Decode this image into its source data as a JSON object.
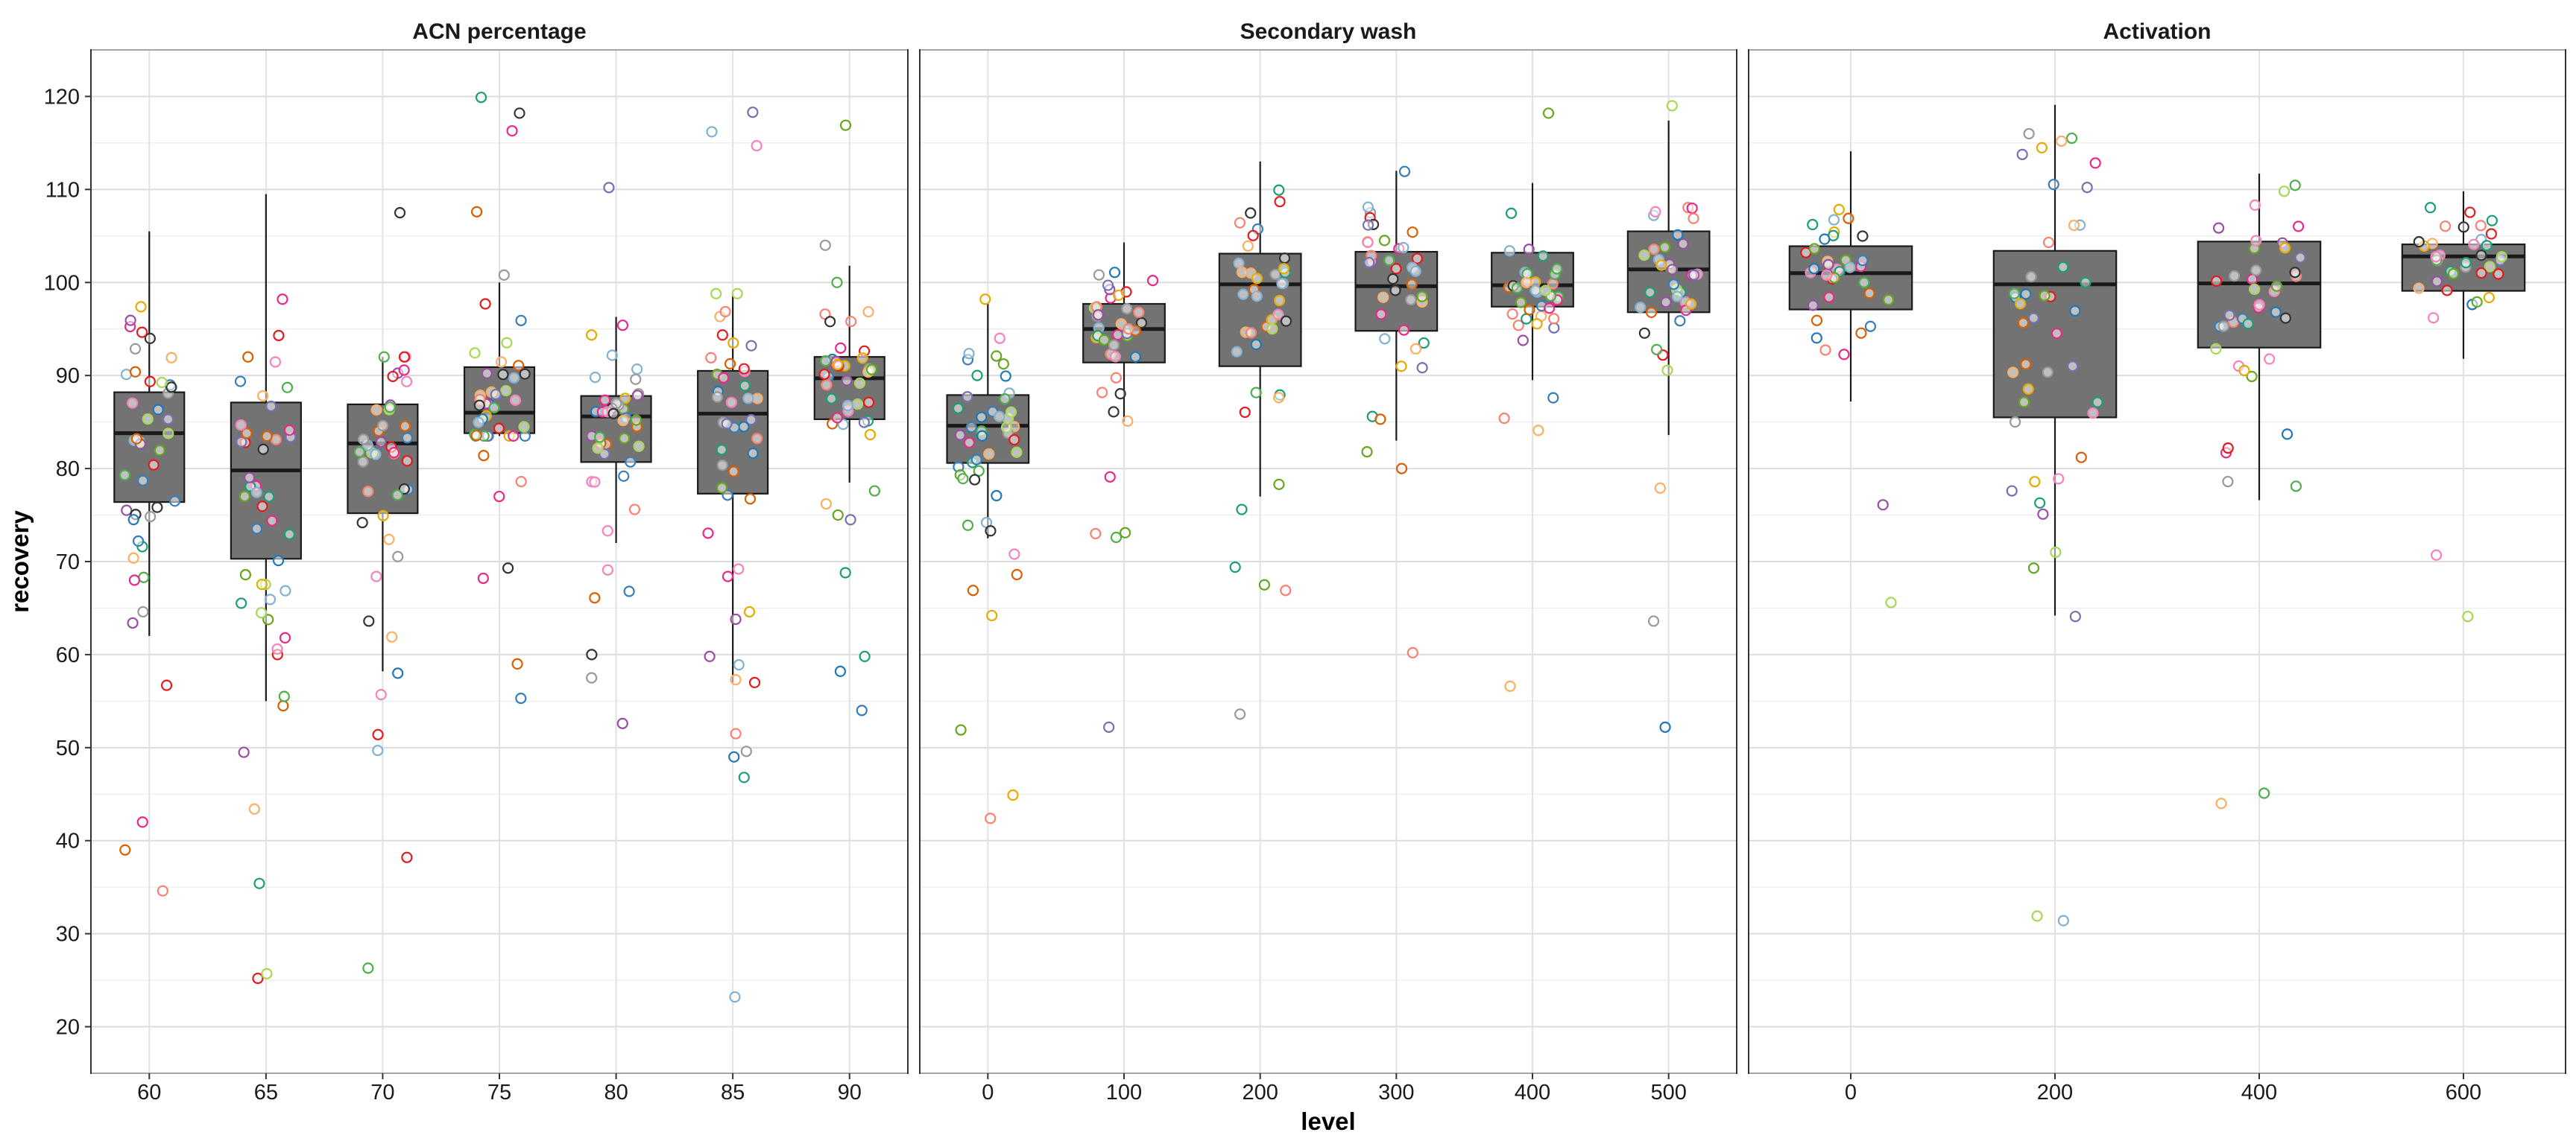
{
  "chart_data": {
    "type": "box",
    "xlabel": "level",
    "ylabel": "recovery",
    "ylim": [
      15,
      125
    ],
    "y_ticks": [
      "20",
      "30",
      "40",
      "50",
      "60",
      "70",
      "80",
      "90",
      "100",
      "110",
      "120"
    ],
    "grid": true,
    "box_fill": "#737373",
    "point_palette": [
      "#e7298a",
      "#1b9e77",
      "#d95f02",
      "#7570b3",
      "#66a61e",
      "#e6ab02",
      "#1f78b4",
      "#f781bf",
      "#fdae61",
      "#999999",
      "#e41a1c",
      "#377eb8",
      "#4daf4a",
      "#984ea3",
      "#a6d854",
      "#333333",
      "#80b1d3",
      "#fb8072"
    ],
    "panels": [
      {
        "title": "ACN percentage",
        "categories": [
          "60",
          "65",
          "70",
          "75",
          "80",
          "85",
          "90"
        ],
        "boxes": [
          {
            "q1": 76.4,
            "median": 83.8,
            "q3": 88.2,
            "whisker_low": 62,
            "whisker_high": 105.5
          },
          {
            "q1": 70.3,
            "median": 79.8,
            "q3": 87.1,
            "whisker_low": 55,
            "whisker_high": 109.5
          },
          {
            "q1": 75.2,
            "median": 82.7,
            "q3": 86.9,
            "whisker_low": 58.2,
            "whisker_high": 92
          },
          {
            "q1": 83.8,
            "median": 86.0,
            "q3": 90.9,
            "whisker_low": 83.5,
            "whisker_high": 100
          },
          {
            "q1": 80.7,
            "median": 85.6,
            "q3": 87.8,
            "whisker_low": 72,
            "whisker_high": 96.3
          },
          {
            "q1": 77.3,
            "median": 85.9,
            "q3": 90.5,
            "whisker_low": 57,
            "whisker_high": 98.8
          },
          {
            "q1": 85.3,
            "median": 89.7,
            "q3": 92.0,
            "whisker_low": 78.5,
            "whisker_high": 101.8
          }
        ],
        "outliers": [
          [
            42,
            39,
            34.6,
            56.7,
            68.3,
            71.6,
            72.2,
            68,
            63.4,
            64.6
          ],
          [
            25.2,
            25.7,
            35.4,
            43.4,
            49.5,
            54.5,
            55.5,
            60,
            60.6,
            64.5,
            98.2,
            94.3
          ],
          [
            26.3,
            38.2,
            49.7,
            51.4,
            55.7,
            58,
            61.9,
            63.6,
            68.4,
            107.5
          ],
          [
            55.3,
            59,
            68.2,
            69.3,
            77,
            78.6,
            81.4,
            107.6,
            116.3,
            118.2,
            119.9,
            100.8,
            97.7
          ],
          [
            52.6,
            57.5,
            60,
            66.1,
            66.8,
            69.1,
            73.3,
            75.6,
            110.2
          ],
          [
            23.2,
            46.8,
            49,
            49.6,
            51.5,
            57,
            57.3,
            58.9,
            59.8,
            63.8,
            64.6,
            69.2,
            114.7,
            116.2,
            118.3
          ],
          [
            54,
            58.2,
            59.8,
            68.8,
            74.5,
            75,
            76.2,
            77.6,
            100,
            116.9,
            104
          ]
        ]
      },
      {
        "title": "Secondary wash",
        "categories": [
          "0",
          "100",
          "200",
          "300",
          "400",
          "500"
        ],
        "boxes": [
          {
            "q1": 80.6,
            "median": 84.6,
            "q3": 87.9,
            "whisker_low": 72.5,
            "whisker_high": 97.8
          },
          {
            "q1": 91.4,
            "median": 95.0,
            "q3": 97.7,
            "whisker_low": 85,
            "whisker_high": 104.3
          },
          {
            "q1": 91.0,
            "median": 99.8,
            "q3": 103.1,
            "whisker_low": 77,
            "whisker_high": 113.0
          },
          {
            "q1": 94.8,
            "median": 99.6,
            "q3": 103.3,
            "whisker_low": 83,
            "whisker_high": 112
          },
          {
            "q1": 97.4,
            "median": 99.7,
            "q3": 103.2,
            "whisker_low": 89.5,
            "whisker_high": 110.7
          },
          {
            "q1": 96.8,
            "median": 101.4,
            "q3": 105.5,
            "whisker_low": 83.6,
            "whisker_high": 117.4
          }
        ],
        "outliers": [
          [
            44.9,
            42.4,
            51.9,
            64.2,
            66.9,
            68.6,
            70.8,
            73.3,
            73.9,
            78.8,
            98.2,
            94
          ],
          [
            52.2,
            72.6,
            73,
            73.1,
            79.1,
            85.1
          ],
          [
            53.6,
            66.9,
            67.5,
            69.4,
            75.6,
            78.3
          ],
          [
            60.2,
            80,
            81.8,
            85.6,
            85.3
          ],
          [
            56.6,
            84.1,
            85.4,
            87.6,
            118.2
          ],
          [
            52.2,
            63.6,
            77.9,
            119
          ]
        ]
      },
      {
        "title": "Activation",
        "categories": [
          "0",
          "200",
          "400",
          "600"
        ],
        "boxes": [
          {
            "q1": 97.1,
            "median": 101.0,
            "q3": 103.9,
            "whisker_low": 87.2,
            "whisker_high": 114.1
          },
          {
            "q1": 85.5,
            "median": 99.8,
            "q3": 103.4,
            "whisker_low": 64.2,
            "whisker_high": 119.1
          },
          {
            "q1": 93.0,
            "median": 99.9,
            "q3": 104.4,
            "whisker_low": 76.6,
            "whisker_high": 111.7
          },
          {
            "q1": 99.1,
            "median": 102.8,
            "q3": 104.1,
            "whisker_low": 91.8,
            "whisker_high": 109.8
          }
        ],
        "outliers": [
          [
            65.6,
            76.1
          ],
          [
            31.9,
            31.4,
            64.1,
            69.3,
            71,
            75.1,
            76.3,
            77.6,
            78.9,
            81.2
          ],
          [
            44,
            45.1,
            78.1,
            78.6,
            81.7,
            82.2,
            83.7
          ],
          [
            64.1,
            70.7
          ]
        ]
      }
    ]
  }
}
